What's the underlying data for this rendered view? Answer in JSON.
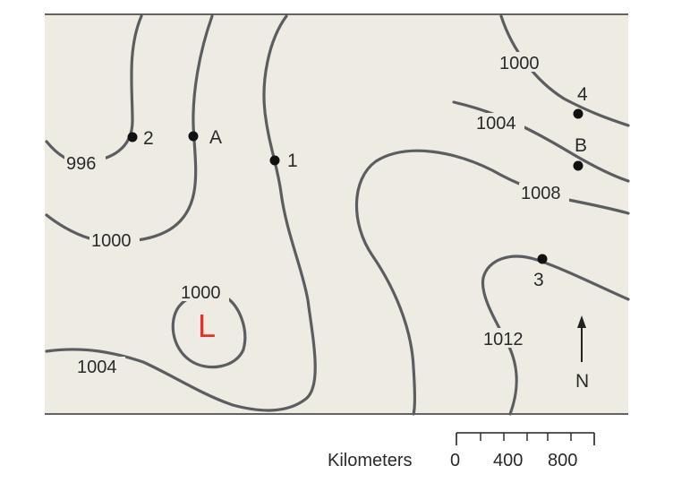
{
  "map": {
    "background_color": "#eeebe3",
    "isobar_color": "#5b5d61",
    "low_color": "#e8302a",
    "low_marker": "L",
    "isobar_labels": {
      "l996": "996",
      "l1000_topright": "1000",
      "l1000_left": "1000",
      "l1000_low": "1000",
      "l1004_left": "1004",
      "l1004_right": "1004",
      "l1008": "1008",
      "l1012": "1012"
    },
    "points": {
      "p1": "1",
      "p2": "2",
      "p3": "3",
      "p4": "4",
      "pA": "A",
      "pB": "B"
    },
    "north_label": "N",
    "north_icon": "north-arrow-icon"
  },
  "scale_bar": {
    "label": "Kilometers",
    "tick_0": "0",
    "tick_400": "400",
    "tick_800": "800"
  }
}
